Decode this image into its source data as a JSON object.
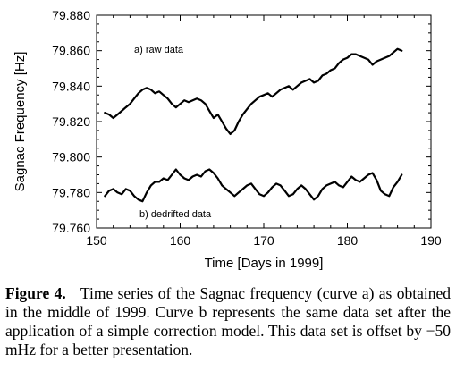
{
  "caption": {
    "label": "Figure 4.",
    "text": "Time series of the Sagnac frequency (curve a) as obtained in the middle of 1999. Curve b represents the same data set after the application of a simple correction model. This data set is offset by −50 mHz for a better presentation."
  },
  "chart_data": {
    "type": "line",
    "xlabel": "Time [Days in 1999]",
    "ylabel": "Sagnac Frequency [Hz]",
    "xlim": [
      150,
      190
    ],
    "ylim": [
      79.76,
      79.88
    ],
    "xticks": [
      "150",
      "160",
      "170",
      "180",
      "190"
    ],
    "yticks": [
      "79.760",
      "79.780",
      "79.800",
      "79.820",
      "79.840",
      "79.860",
      "79.880"
    ],
    "grid": false,
    "series": [
      {
        "name": "a) raw data",
        "color": "#000000",
        "x": [
          151,
          151.5,
          152,
          152.5,
          153,
          153.5,
          154,
          154.5,
          155,
          155.5,
          156,
          156.5,
          157,
          157.5,
          158,
          158.5,
          159,
          159.5,
          160,
          160.5,
          161,
          161.5,
          162,
          162.5,
          163,
          163.5,
          164,
          164.5,
          165,
          165.5,
          166,
          166.5,
          167,
          167.5,
          168,
          168.5,
          169,
          169.5,
          170,
          170.5,
          171,
          171.5,
          172,
          172.5,
          173,
          173.5,
          174,
          174.5,
          175,
          175.5,
          176,
          176.5,
          177,
          177.5,
          178,
          178.5,
          179,
          179.5,
          180,
          180.5,
          181,
          181.5,
          182,
          182.5,
          183,
          183.5,
          184,
          184.5,
          185,
          185.5,
          186,
          186.5
        ],
        "y": [
          79.825,
          79.824,
          79.822,
          79.824,
          79.826,
          79.828,
          79.83,
          79.833,
          79.836,
          79.838,
          79.839,
          79.838,
          79.836,
          79.837,
          79.835,
          79.833,
          79.83,
          79.828,
          79.83,
          79.832,
          79.831,
          79.832,
          79.833,
          79.832,
          79.83,
          79.826,
          79.822,
          79.824,
          79.82,
          79.816,
          79.813,
          79.815,
          79.82,
          79.824,
          79.827,
          79.83,
          79.832,
          79.834,
          79.835,
          79.836,
          79.834,
          79.836,
          79.838,
          79.839,
          79.84,
          79.838,
          79.84,
          79.842,
          79.843,
          79.844,
          79.842,
          79.843,
          79.846,
          79.847,
          79.849,
          79.85,
          79.853,
          79.855,
          79.856,
          79.858,
          79.858,
          79.857,
          79.856,
          79.855,
          79.852,
          79.854,
          79.855,
          79.856,
          79.857,
          79.859,
          79.861,
          79.86
        ]
      },
      {
        "name": "b) dedrifted data",
        "color": "#000000",
        "x": [
          151,
          151.5,
          152,
          152.5,
          153,
          153.5,
          154,
          154.5,
          155,
          155.5,
          156,
          156.5,
          157,
          157.5,
          158,
          158.5,
          159,
          159.5,
          160,
          160.5,
          161,
          161.5,
          162,
          162.5,
          163,
          163.5,
          164,
          164.5,
          165,
          165.5,
          166,
          166.5,
          167,
          167.5,
          168,
          168.5,
          169,
          169.5,
          170,
          170.5,
          171,
          171.5,
          172,
          172.5,
          173,
          173.5,
          174,
          174.5,
          175,
          175.5,
          176,
          176.5,
          177,
          177.5,
          178,
          178.5,
          179,
          179.5,
          180,
          180.5,
          181,
          181.5,
          182,
          182.5,
          183,
          183.5,
          184,
          184.5,
          185,
          185.5,
          186,
          186.5
        ],
        "y": [
          79.778,
          79.781,
          79.782,
          79.78,
          79.779,
          79.782,
          79.781,
          79.778,
          79.776,
          79.775,
          79.78,
          79.784,
          79.786,
          79.786,
          79.788,
          79.787,
          79.79,
          79.793,
          79.79,
          79.788,
          79.787,
          79.789,
          79.79,
          79.789,
          79.792,
          79.793,
          79.791,
          79.788,
          79.784,
          79.782,
          79.78,
          79.778,
          79.78,
          79.782,
          79.784,
          79.785,
          79.782,
          79.779,
          79.778,
          79.78,
          79.783,
          79.785,
          79.784,
          79.781,
          79.778,
          79.779,
          79.782,
          79.784,
          79.782,
          79.779,
          79.776,
          79.778,
          79.782,
          79.784,
          79.785,
          79.786,
          79.784,
          79.783,
          79.786,
          79.789,
          79.787,
          79.786,
          79.788,
          79.79,
          79.791,
          79.787,
          79.781,
          79.779,
          79.778,
          79.783,
          79.786,
          79.79
        ]
      }
    ]
  }
}
